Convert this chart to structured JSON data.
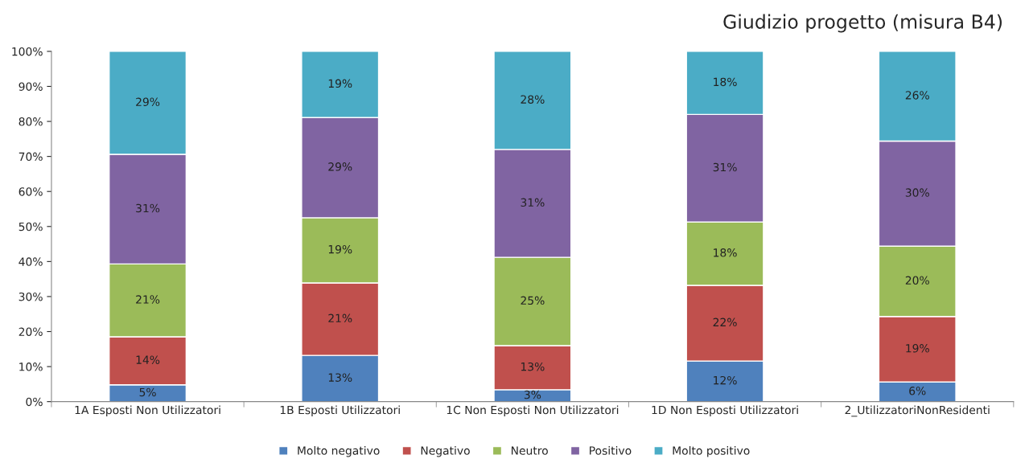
{
  "chart_data": {
    "type": "bar",
    "title": "Giudizio progetto (misura B4)",
    "categories": [
      "1A Esposti Non Utilizzatori",
      "1B Esposti Utilizzatori",
      "1C Non Esposti Non Utilizzatori",
      "1D Non Esposti Utilizzatori",
      "2_UtilizzatoriNonResidenti"
    ],
    "stacked": true,
    "series": [
      {
        "name": "Molto negativo",
        "color": "#4f81bd",
        "values": [
          4.8,
          13.2,
          3.4,
          11.6,
          5.6
        ],
        "value_labels": [
          "5%",
          "13%",
          "3%",
          "12%",
          "6%"
        ]
      },
      {
        "name": "Negativo",
        "color": "#c0504d",
        "values": [
          13.7,
          20.7,
          12.6,
          21.6,
          18.7
        ],
        "value_labels": [
          "14%",
          "21%",
          "13%",
          "22%",
          "19%"
        ]
      },
      {
        "name": "Neutro",
        "color": "#9bbb59",
        "values": [
          20.8,
          18.6,
          25.2,
          18.1,
          20.1
        ],
        "value_labels": [
          "21%",
          "19%",
          "25%",
          "18%",
          "20%"
        ]
      },
      {
        "name": "Positivo",
        "color": "#8064a2",
        "values": [
          31.3,
          28.6,
          30.8,
          30.7,
          30.0
        ],
        "value_labels": [
          "31%",
          "29%",
          "31%",
          "31%",
          "30%"
        ]
      },
      {
        "name": "Molto positivo",
        "color": "#4bacc6",
        "values": [
          29.4,
          18.9,
          28.0,
          18.0,
          25.6
        ],
        "value_labels": [
          "29%",
          "19%",
          "28%",
          "18%",
          "26%"
        ]
      }
    ],
    "ylim": [
      0,
      100
    ],
    "yticks": [
      {
        "value": 0,
        "label": "0%"
      },
      {
        "value": 10,
        "label": "10%"
      },
      {
        "value": 20,
        "label": "20%"
      },
      {
        "value": 30,
        "label": "30%"
      },
      {
        "value": 40,
        "label": "40%"
      },
      {
        "value": 50,
        "label": "50%"
      },
      {
        "value": 60,
        "label": "60%"
      },
      {
        "value": 70,
        "label": "70%"
      },
      {
        "value": 80,
        "label": "80%"
      },
      {
        "value": 90,
        "label": "90%"
      },
      {
        "value": 100,
        "label": "100%"
      }
    ],
    "grid": false,
    "legend": "bottom"
  }
}
